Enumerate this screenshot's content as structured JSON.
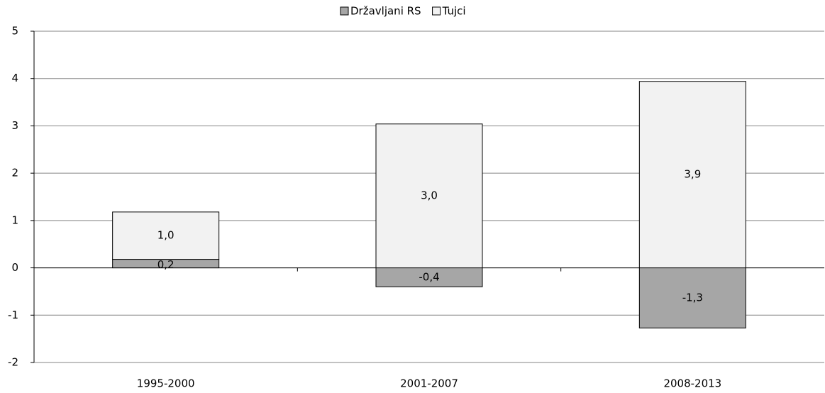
{
  "chart_data": {
    "type": "bar",
    "stacked": true,
    "categories": [
      "1995-2000",
      "2001-2007",
      "2008-2013"
    ],
    "series": [
      {
        "name": "Državljani RS",
        "color": "#a6a6a6",
        "values": [
          0.18,
          -0.4,
          -1.27
        ],
        "value_labels": [
          "0,2",
          "-0,4",
          "-1,3"
        ]
      },
      {
        "name": "Tujci",
        "color": "#f2f2f2",
        "values": [
          1.0,
          3.04,
          3.94
        ],
        "value_labels": [
          "1,0",
          "3,0",
          "3,9"
        ]
      }
    ],
    "ylim": [
      -2,
      5
    ],
    "yticks": [
      -2,
      -1,
      0,
      1,
      2,
      3,
      4,
      5
    ],
    "grid": true,
    "legend": "top"
  }
}
